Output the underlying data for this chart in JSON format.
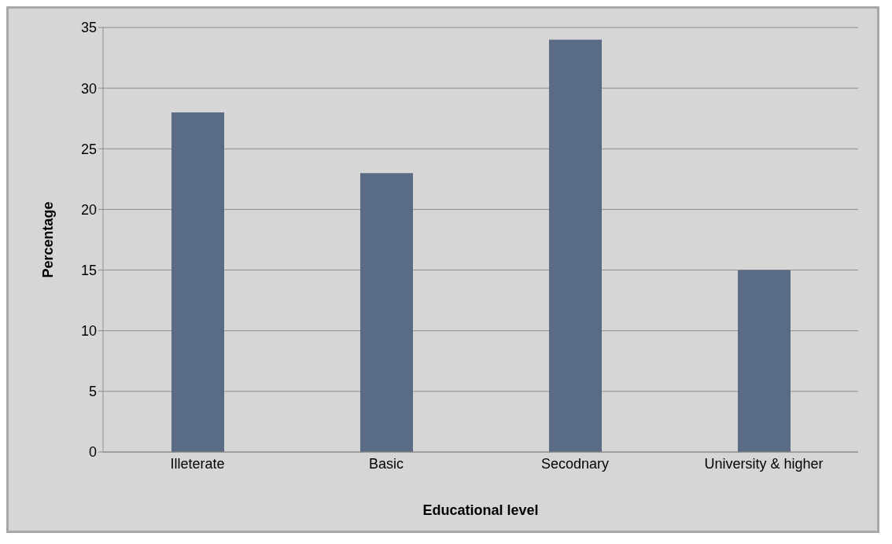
{
  "chart_data": {
    "type": "bar",
    "xlabel": "Educational level",
    "ylabel": "Percentage",
    "categories": [
      "Illeterate",
      "Basic",
      "Secodnary",
      "University & higher"
    ],
    "values": [
      28,
      23,
      34,
      15
    ],
    "color": "#5a6b86",
    "ylim": [
      0,
      35
    ],
    "yticks": [
      0,
      5,
      10,
      15,
      20,
      25,
      30,
      35
    ],
    "grid": "y"
  }
}
